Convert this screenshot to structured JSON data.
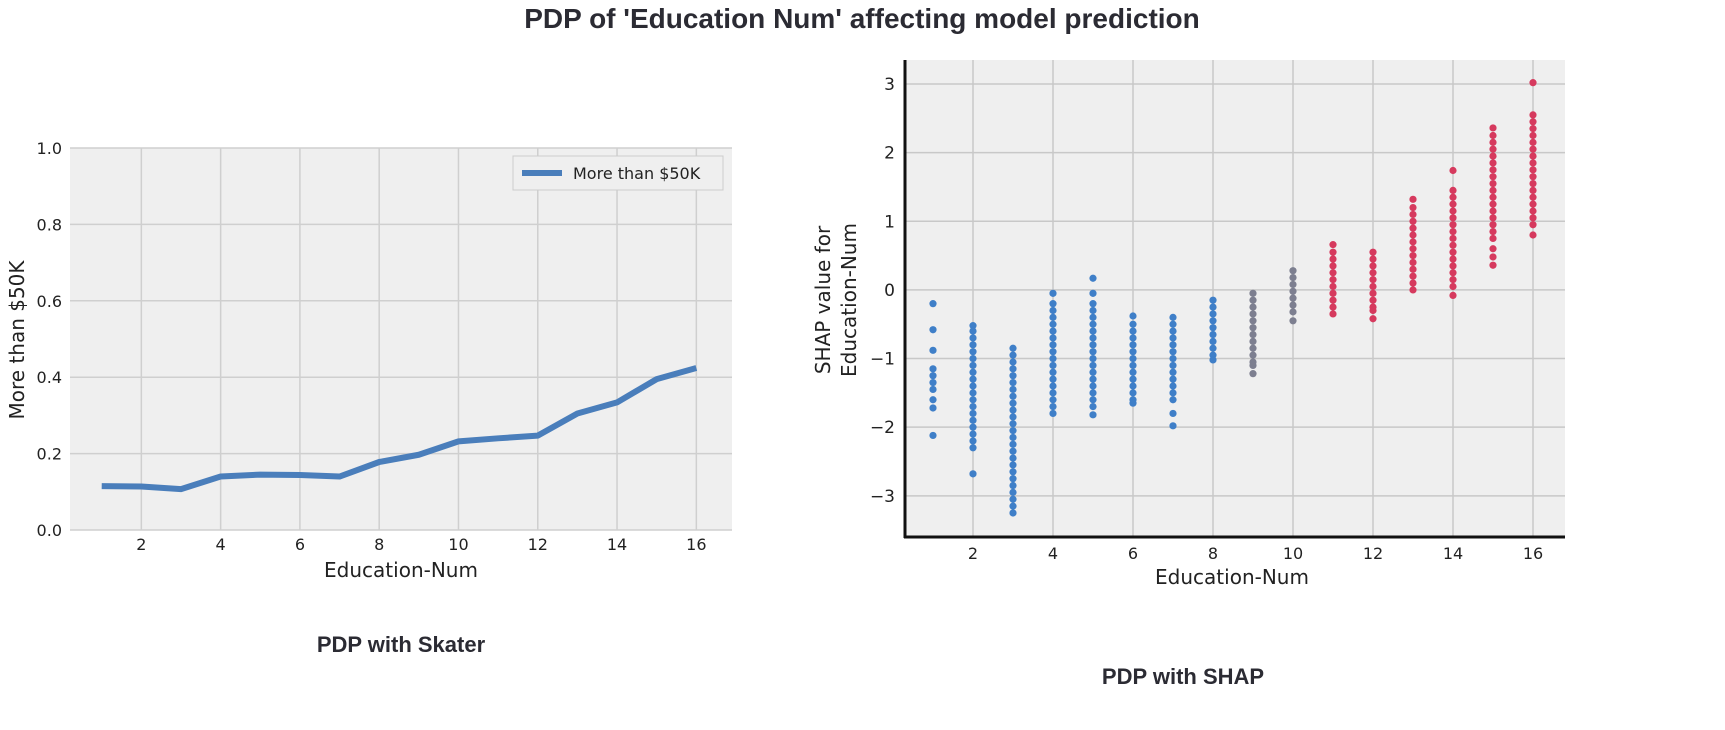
{
  "figure": {
    "title": "PDP of 'Education Num' affecting model prediction"
  },
  "chart_data": [
    {
      "type": "line",
      "caption": "PDP with Skater",
      "xlabel": "Education-Num",
      "ylabel": "More than $50K",
      "xlim": [
        0.2,
        16.9
      ],
      "ylim": [
        0,
        1.0
      ],
      "xticks": [
        2,
        4,
        6,
        8,
        10,
        12,
        14,
        16
      ],
      "yticks": [
        0.0,
        0.2,
        0.4,
        0.6,
        0.8,
        1.0
      ],
      "xtick_labels": [
        "2",
        "4",
        "6",
        "8",
        "10",
        "12",
        "14",
        "16"
      ],
      "ytick_labels": [
        "0.0",
        "0.2",
        "0.4",
        "0.6",
        "0.8",
        "1.0"
      ],
      "grid": true,
      "legend_position": "top-right",
      "series": [
        {
          "name": "More than $50K",
          "color": "#4a7ebb",
          "x": [
            1,
            2,
            3,
            4,
            5,
            6,
            7,
            8,
            9,
            10,
            11,
            12,
            13,
            14,
            15,
            16
          ],
          "y": [
            0.115,
            0.114,
            0.107,
            0.14,
            0.145,
            0.144,
            0.14,
            0.178,
            0.197,
            0.232,
            0.24,
            0.247,
            0.305,
            0.334,
            0.395,
            0.424
          ]
        }
      ]
    },
    {
      "type": "scatter",
      "caption": "PDP with SHAP",
      "xlabel": "Education-Num",
      "ylabel": "SHAP value for Education-Num",
      "ylabel_lines": [
        "SHAP value for",
        "Education-Num"
      ],
      "xlim": [
        0.3,
        16.8
      ],
      "ylim": [
        -3.6,
        3.35
      ],
      "xticks": [
        2,
        4,
        6,
        8,
        10,
        12,
        14,
        16
      ],
      "yticks": [
        -3,
        -2,
        -1,
        0,
        1,
        2,
        3
      ],
      "xtick_labels": [
        "2",
        "4",
        "6",
        "8",
        "10",
        "12",
        "14",
        "16"
      ],
      "ytick_labels": [
        "−3",
        "−2",
        "−1",
        "0",
        "1",
        "2",
        "3"
      ],
      "grid": true,
      "colors": {
        "low": "#3f7fc8",
        "mid": "#7d7f90",
        "high": "#d63a5e"
      },
      "groups": [
        {
          "x": 1,
          "color": "low",
          "y": [
            -0.2,
            -0.58,
            -0.88,
            -1.15,
            -1.25,
            -1.35,
            -1.45,
            -1.6,
            -1.72,
            -2.12
          ]
        },
        {
          "x": 2,
          "color": "low",
          "y": [
            -0.52,
            -0.6,
            -0.7,
            -0.8,
            -0.9,
            -1.0,
            -1.1,
            -1.2,
            -1.3,
            -1.4,
            -1.5,
            -1.6,
            -1.7,
            -1.8,
            -1.9,
            -2.0,
            -2.1,
            -2.2,
            -2.3,
            -2.68
          ]
        },
        {
          "x": 3,
          "color": "low",
          "y": [
            -0.85,
            -0.95,
            -1.05,
            -1.15,
            -1.25,
            -1.35,
            -1.45,
            -1.55,
            -1.65,
            -1.75,
            -1.85,
            -1.95,
            -2.05,
            -2.15,
            -2.25,
            -2.35,
            -2.45,
            -2.55,
            -2.65,
            -2.75,
            -2.85,
            -2.95,
            -3.05,
            -3.15,
            -3.25
          ]
        },
        {
          "x": 4,
          "color": "low",
          "y": [
            -0.05,
            -0.2,
            -0.3,
            -0.4,
            -0.5,
            -0.6,
            -0.7,
            -0.8,
            -0.9,
            -1.0,
            -1.1,
            -1.2,
            -1.3,
            -1.4,
            -1.5,
            -1.6,
            -1.7,
            -1.8
          ]
        },
        {
          "x": 5,
          "color": "low",
          "y": [
            0.17,
            -0.05,
            -0.2,
            -0.3,
            -0.4,
            -0.5,
            -0.6,
            -0.7,
            -0.8,
            -0.9,
            -1.0,
            -1.1,
            -1.2,
            -1.3,
            -1.4,
            -1.5,
            -1.6,
            -1.7,
            -1.82
          ]
        },
        {
          "x": 6,
          "color": "low",
          "y": [
            -0.38,
            -0.5,
            -0.6,
            -0.7,
            -0.8,
            -0.9,
            -1.0,
            -1.1,
            -1.2,
            -1.3,
            -1.4,
            -1.5,
            -1.6,
            -1.65
          ]
        },
        {
          "x": 7,
          "color": "low",
          "y": [
            -0.4,
            -0.5,
            -0.6,
            -0.7,
            -0.8,
            -0.9,
            -1.0,
            -1.1,
            -1.2,
            -1.3,
            -1.4,
            -1.5,
            -1.6,
            -1.8,
            -1.98
          ]
        },
        {
          "x": 8,
          "color": "low",
          "y": [
            -0.15,
            -0.25,
            -0.35,
            -0.45,
            -0.55,
            -0.65,
            -0.75,
            -0.85,
            -0.95,
            -1.02
          ]
        },
        {
          "x": 9,
          "color": "mid",
          "y": [
            -0.05,
            -0.15,
            -0.25,
            -0.35,
            -0.45,
            -0.55,
            -0.65,
            -0.75,
            -0.85,
            -0.95,
            -1.05,
            -1.1,
            -1.22
          ]
        },
        {
          "x": 10,
          "color": "mid",
          "y": [
            0.28,
            0.18,
            0.08,
            -0.02,
            -0.12,
            -0.22,
            -0.32,
            -0.45
          ]
        },
        {
          "x": 11,
          "color": "high",
          "y": [
            0.66,
            0.55,
            0.45,
            0.35,
            0.25,
            0.15,
            0.05,
            -0.05,
            -0.15,
            -0.25,
            -0.35
          ]
        },
        {
          "x": 12,
          "color": "high",
          "y": [
            0.55,
            0.45,
            0.35,
            0.25,
            0.15,
            0.05,
            -0.05,
            -0.15,
            -0.25,
            -0.3,
            -0.42
          ]
        },
        {
          "x": 13,
          "color": "high",
          "y": [
            1.32,
            1.2,
            1.1,
            1.0,
            0.9,
            0.8,
            0.7,
            0.6,
            0.5,
            0.4,
            0.3,
            0.2,
            0.1,
            0.0
          ]
        },
        {
          "x": 14,
          "color": "high",
          "y": [
            1.74,
            1.45,
            1.35,
            1.25,
            1.15,
            1.05,
            0.95,
            0.85,
            0.75,
            0.65,
            0.55,
            0.45,
            0.35,
            0.25,
            0.15,
            0.05,
            -0.08
          ]
        },
        {
          "x": 15,
          "color": "high",
          "y": [
            2.36,
            2.25,
            2.15,
            2.05,
            1.95,
            1.85,
            1.75,
            1.65,
            1.55,
            1.45,
            1.35,
            1.25,
            1.15,
            1.05,
            0.95,
            0.85,
            0.75,
            0.6,
            0.48,
            0.36
          ]
        },
        {
          "x": 16,
          "color": "high",
          "y": [
            3.02,
            2.55,
            2.45,
            2.35,
            2.25,
            2.15,
            2.05,
            1.95,
            1.85,
            1.75,
            1.65,
            1.55,
            1.45,
            1.35,
            1.25,
            1.15,
            1.05,
            0.95,
            0.8
          ]
        }
      ]
    }
  ]
}
